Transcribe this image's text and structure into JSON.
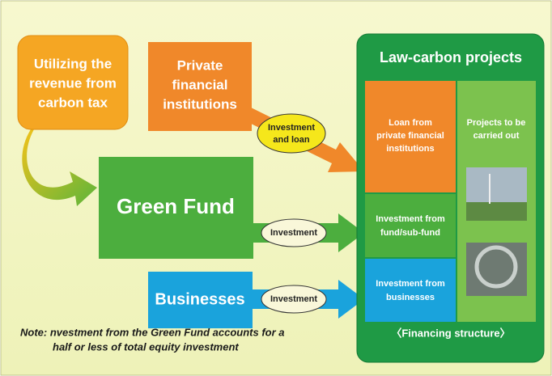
{
  "nodes": [
    {
      "label": [
        "Utilizing the",
        "revenue from",
        "carbon tax"
      ]
    },
    {
      "label": [
        "Private",
        "financial",
        "institutions"
      ]
    },
    {
      "label": [
        "Green Fund"
      ]
    },
    {
      "label": [
        "Businesses"
      ]
    }
  ],
  "edges": [
    {
      "label": [
        "Investment",
        "and loan"
      ]
    },
    {
      "label": [
        "Investment"
      ]
    },
    {
      "label": [
        "Investment"
      ]
    }
  ],
  "panel": {
    "title": "Law-carbon projects",
    "sections": [
      {
        "label": [
          "Loan from",
          "private financial",
          "institutions"
        ]
      },
      {
        "label": [
          "Investment from",
          "fund/sub-fund"
        ]
      },
      {
        "label": [
          "Investment from",
          "businesses"
        ]
      }
    ],
    "projects": [
      "Projects to be",
      "carried out"
    ],
    "footer": "〈Financing structure〉"
  },
  "note": [
    "Note: nvestment from the Green Fund accounts for a",
    "half or less of total equity investment"
  ]
}
